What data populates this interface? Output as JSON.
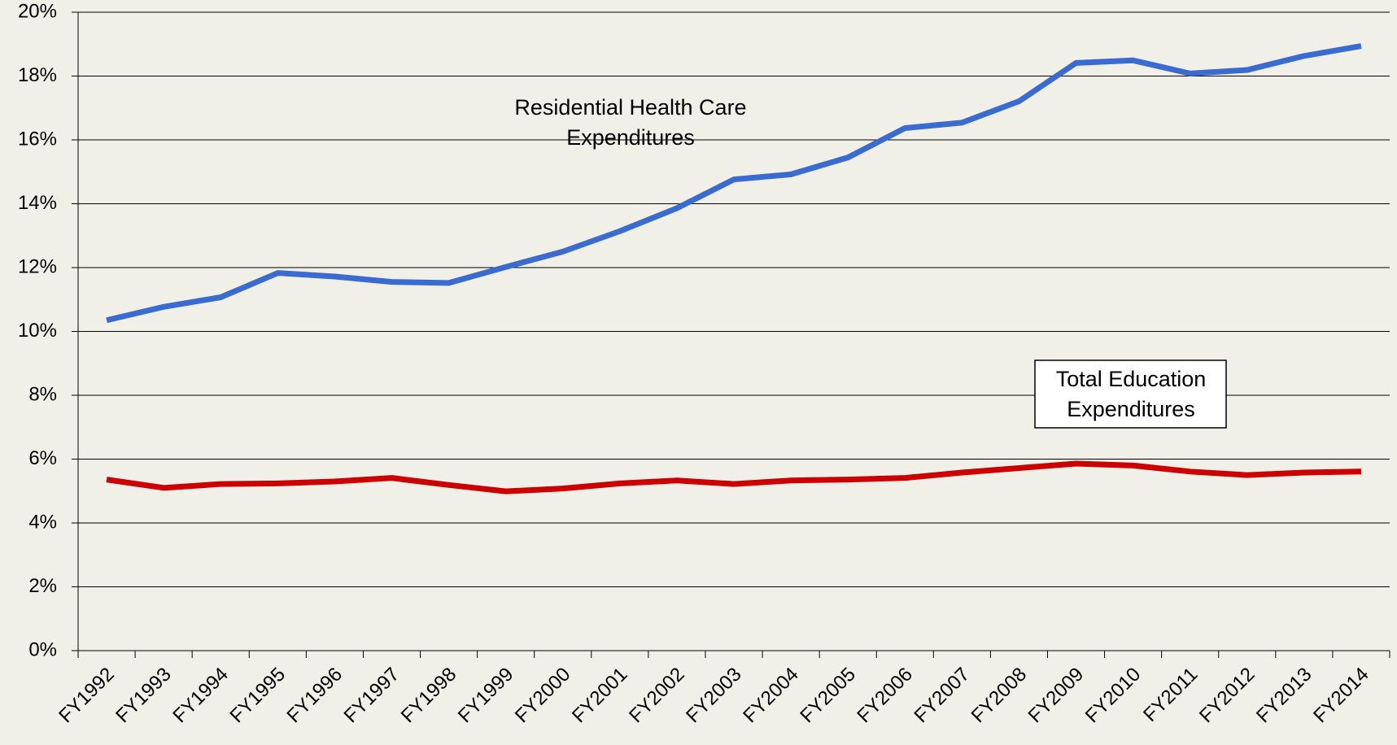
{
  "chart_data": {
    "type": "line",
    "categories": [
      "FY1992",
      "FY1993",
      "FY1994",
      "FY1995",
      "FY1996",
      "FY1997",
      "FY1998",
      "FY1999",
      "FY2000",
      "FY2001",
      "FY2002",
      "FY2003",
      "FY2004",
      "FY2005",
      "FY2006",
      "FY2007",
      "FY2008",
      "FY2009",
      "FY2010",
      "FY2011",
      "FY2012",
      "FY2013",
      "FY2014"
    ],
    "series": [
      {
        "color": "#3a6bd1",
        "values": [
          10.35,
          10.77,
          11.07,
          11.83,
          11.72,
          11.55,
          11.52,
          12.02,
          12.5,
          13.14,
          13.86,
          14.76,
          14.92,
          15.45,
          16.37,
          16.54,
          17.21,
          18.41,
          18.49,
          18.08,
          18.19,
          18.63,
          18.94
        ]
      },
      {
        "color": "#cc0000",
        "values": [
          5.36,
          5.1,
          5.22,
          5.24,
          5.3,
          5.41,
          5.19,
          4.99,
          5.08,
          5.24,
          5.33,
          5.22,
          5.33,
          5.36,
          5.41,
          5.58,
          5.72,
          5.86,
          5.8,
          5.61,
          5.5,
          5.58,
          5.61
        ]
      }
    ],
    "annotations": [
      {
        "lines": [
          "Residential Health Care",
          "Expenditures"
        ],
        "boxed": false
      },
      {
        "lines": [
          "Total Education",
          "Expenditures"
        ],
        "boxed": true
      }
    ],
    "ylim": [
      0,
      20
    ],
    "yticks": [
      {
        "value": 0,
        "label": "0%"
      },
      {
        "value": 2,
        "label": "2%"
      },
      {
        "value": 4,
        "label": "4%"
      },
      {
        "value": 6,
        "label": "6%"
      },
      {
        "value": 8,
        "label": "8%"
      },
      {
        "value": 10,
        "label": "10%"
      },
      {
        "value": 12,
        "label": "12%"
      },
      {
        "value": 14,
        "label": "14%"
      },
      {
        "value": 16,
        "label": "16%"
      },
      {
        "value": 18,
        "label": "18%"
      },
      {
        "value": 20,
        "label": "20%"
      }
    ],
    "grid": true
  }
}
